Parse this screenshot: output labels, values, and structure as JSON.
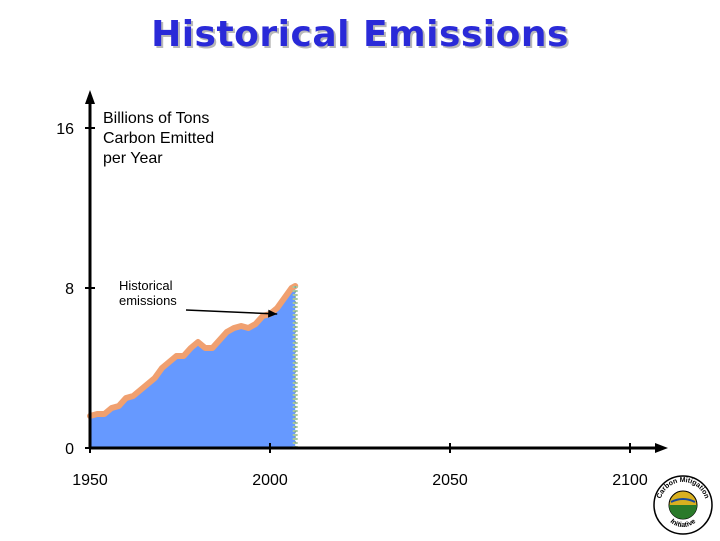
{
  "page": {
    "title": "Historical Emissions"
  },
  "chart_data": {
    "type": "area",
    "title": "Historical Emissions",
    "ylabel_lines": [
      "Billions of Tons",
      "Carbon Emitted",
      "per Year"
    ],
    "xlabel": "",
    "xlim": [
      1950,
      2110
    ],
    "ylim": [
      0,
      17
    ],
    "xticks": [
      1950,
      2000,
      2050,
      2100
    ],
    "yticks": [
      0,
      8,
      16
    ],
    "grid": false,
    "annotation": {
      "text_lines": [
        "Historical",
        "emissions"
      ],
      "arrow_to": [
        2002,
        6.7
      ]
    },
    "x": [
      1950,
      1952,
      1954,
      1956,
      1958,
      1960,
      1962,
      1964,
      1966,
      1968,
      1970,
      1972,
      1974,
      1976,
      1978,
      1980,
      1982,
      1984,
      1986,
      1988,
      1990,
      1992,
      1994,
      1996,
      1998,
      2000,
      2002,
      2004,
      2006,
      2007
    ],
    "series": [
      {
        "values": [
          1.6,
          1.7,
          1.7,
          2.0,
          2.1,
          2.5,
          2.6,
          2.9,
          3.2,
          3.5,
          4.0,
          4.3,
          4.6,
          4.6,
          5.0,
          5.3,
          5.0,
          5.0,
          5.4,
          5.8,
          6.0,
          6.1,
          6.0,
          6.2,
          6.6,
          6.7,
          7.0,
          7.5,
          8.0,
          8.1
        ]
      }
    ],
    "colors": {
      "fill": "#6699ff",
      "line": "#f0a070",
      "axis": "#000000",
      "dotted_marker": "#a8c8a0"
    }
  },
  "logo": {
    "top_text": "Carbon Mitigation",
    "bottom_text": "Initiative"
  }
}
